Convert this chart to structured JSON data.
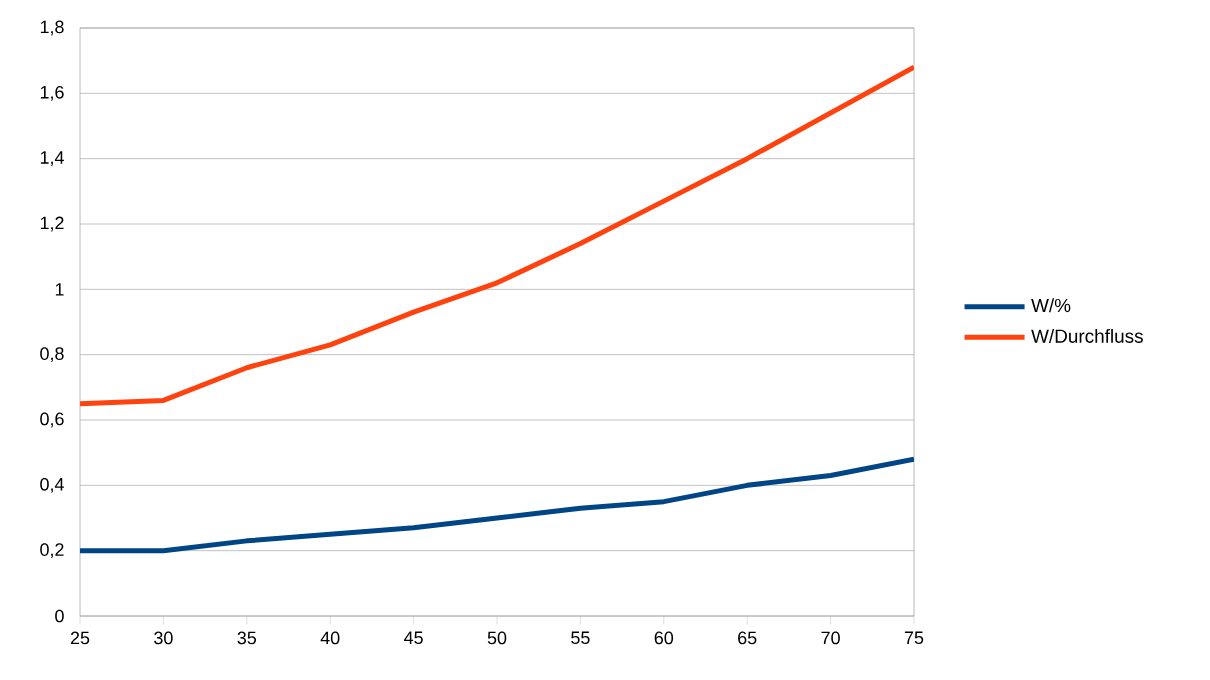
{
  "chart_data": {
    "type": "line",
    "x": [
      25,
      30,
      35,
      40,
      45,
      50,
      55,
      60,
      65,
      70,
      75
    ],
    "series": [
      {
        "name": "W/%",
        "color": "#004586",
        "values": [
          0.2,
          0.2,
          0.23,
          0.25,
          0.27,
          0.3,
          0.33,
          0.35,
          0.4,
          0.43,
          0.48
        ]
      },
      {
        "name": "W/Durchfluss",
        "color": "#ff420e",
        "values": [
          0.65,
          0.66,
          0.76,
          0.83,
          0.93,
          1.02,
          1.14,
          1.27,
          1.4,
          1.54,
          1.68
        ]
      }
    ],
    "xlim": [
      25,
      75
    ],
    "xticks": [
      25,
      30,
      35,
      40,
      45,
      50,
      55,
      60,
      65,
      70,
      75
    ],
    "ylim": [
      0,
      1.8
    ],
    "yticks": [
      0,
      {
        "value": 0.2,
        "label": "0,2"
      },
      {
        "value": 0.4,
        "label": "0,4"
      },
      {
        "value": 0.6,
        "label": "0,6"
      },
      {
        "value": 0.8,
        "label": "0,8"
      },
      1,
      {
        "value": 1.2,
        "label": "1,2"
      },
      {
        "value": 1.4,
        "label": "1,4"
      },
      {
        "value": 1.6,
        "label": "1,6"
      },
      {
        "value": 1.8,
        "label": "1,8"
      }
    ],
    "grid": "y",
    "legend": "right",
    "marker": "none",
    "line_style": "solid"
  }
}
